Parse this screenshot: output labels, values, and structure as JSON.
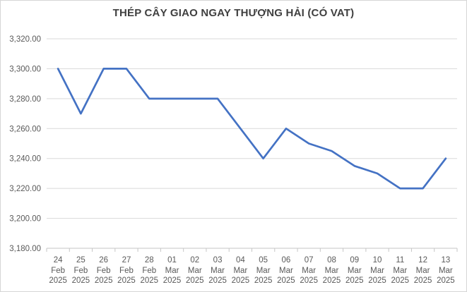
{
  "title": "THÉP CÂY GIAO NGAY THƯỢNG HẢI (CÓ VAT)",
  "chart_data": {
    "type": "line",
    "title": "THÉP CÂY GIAO NGAY THƯỢNG HẢI (CÓ VAT)",
    "categories": [
      {
        "day": "24",
        "month": "Feb",
        "year": "2025"
      },
      {
        "day": "25",
        "month": "Feb",
        "year": "2025"
      },
      {
        "day": "26",
        "month": "Feb",
        "year": "2025"
      },
      {
        "day": "27",
        "month": "Feb",
        "year": "2025"
      },
      {
        "day": "28",
        "month": "Feb",
        "year": "2025"
      },
      {
        "day": "01",
        "month": "Mar",
        "year": "2025"
      },
      {
        "day": "02",
        "month": "Mar",
        "year": "2025"
      },
      {
        "day": "03",
        "month": "Mar",
        "year": "2025"
      },
      {
        "day": "04",
        "month": "Mar",
        "year": "2025"
      },
      {
        "day": "05",
        "month": "Mar",
        "year": "2025"
      },
      {
        "day": "06",
        "month": "Mar",
        "year": "2025"
      },
      {
        "day": "07",
        "month": "Mar",
        "year": "2025"
      },
      {
        "day": "08",
        "month": "Mar",
        "year": "2025"
      },
      {
        "day": "09",
        "month": "Mar",
        "year": "2025"
      },
      {
        "day": "10",
        "month": "Mar",
        "year": "2025"
      },
      {
        "day": "11",
        "month": "Mar",
        "year": "2025"
      },
      {
        "day": "12",
        "month": "Mar",
        "year": "2025"
      },
      {
        "day": "13",
        "month": "Mar",
        "year": "2025"
      }
    ],
    "values": [
      3300,
      3270,
      3300,
      3300,
      3280,
      3280,
      3280,
      3280,
      3260,
      3240,
      3260,
      3250,
      3245,
      3235,
      3230,
      3220,
      3220,
      3240
    ],
    "ylim": [
      3180,
      3320
    ],
    "y_tick_step": 20,
    "y_tick_labels": [
      "3,180.00",
      "3,200.00",
      "3,220.00",
      "3,240.00",
      "3,260.00",
      "3,280.00",
      "3,300.00",
      "3,320.00"
    ],
    "xlabel": "",
    "ylabel": "",
    "grid": true,
    "legend": false
  },
  "colors": {
    "line": "#4472C4",
    "grid": "#d9d9d9",
    "axis": "#c6c6c6",
    "label": "#595959",
    "title": "#3f3f3f"
  }
}
